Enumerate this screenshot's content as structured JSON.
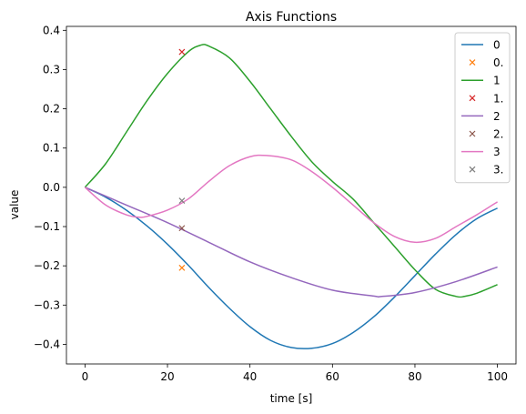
{
  "chart_data": {
    "type": "line",
    "title": "Axis Functions",
    "xlabel": "time [s]",
    "ylabel": "value",
    "xlim": [
      -4.5,
      104.5
    ],
    "ylim": [
      -0.45,
      0.41
    ],
    "xticks": [
      0,
      20,
      40,
      60,
      80,
      100
    ],
    "xtick_labels": [
      "0",
      "20",
      "40",
      "60",
      "80",
      "100"
    ],
    "yticks": [
      -0.4,
      -0.3,
      -0.2,
      -0.1,
      0.0,
      0.1,
      0.2,
      0.3,
      0.4
    ],
    "ytick_labels": [
      "−0.4",
      "−0.3",
      "−0.2",
      "−0.1",
      "0.0",
      "0.1",
      "0.2",
      "0.3",
      "0.4"
    ],
    "grid": false,
    "legend_position": "upper-right",
    "series": [
      {
        "name": "0",
        "color": "#1f77b4",
        "x": [
          0,
          5,
          10,
          15,
          20,
          25,
          30,
          35,
          40,
          45,
          50,
          55,
          60,
          65,
          70,
          75,
          80,
          85,
          90,
          95,
          100
        ],
        "y": [
          0.0,
          -0.025,
          -0.058,
          -0.098,
          -0.145,
          -0.198,
          -0.255,
          -0.308,
          -0.355,
          -0.39,
          -0.408,
          -0.41,
          -0.398,
          -0.37,
          -0.33,
          -0.28,
          -0.225,
          -0.17,
          -0.12,
          -0.08,
          -0.053
        ]
      },
      {
        "name": "0.",
        "color": "#ff7f0e",
        "marker": "x",
        "x": [
          23.5
        ],
        "y": [
          -0.205
        ]
      },
      {
        "name": "1",
        "color": "#2ca02c",
        "x": [
          0,
          5,
          10,
          15,
          20,
          25,
          28,
          30,
          35,
          40,
          45,
          50,
          55,
          60,
          65,
          70,
          75,
          80,
          85,
          90,
          92,
          95,
          100
        ],
        "y": [
          0.0,
          0.06,
          0.14,
          0.22,
          0.29,
          0.345,
          0.362,
          0.36,
          0.33,
          0.27,
          0.2,
          0.13,
          0.065,
          0.015,
          -0.03,
          -0.09,
          -0.15,
          -0.21,
          -0.26,
          -0.278,
          -0.278,
          -0.27,
          -0.248
        ]
      },
      {
        "name": "1.",
        "color": "#d62728",
        "marker": "x",
        "x": [
          23.5
        ],
        "y": [
          0.345
        ]
      },
      {
        "name": "2",
        "color": "#9467bd",
        "x": [
          0,
          10,
          20,
          30,
          40,
          50,
          60,
          70,
          72,
          80,
          90,
          100
        ],
        "y": [
          0.0,
          -0.045,
          -0.09,
          -0.14,
          -0.19,
          -0.23,
          -0.262,
          -0.277,
          -0.278,
          -0.268,
          -0.24,
          -0.203
        ]
      },
      {
        "name": "2.",
        "color": "#8c564b",
        "marker": "x",
        "x": [
          23.5
        ],
        "y": [
          -0.104
        ]
      },
      {
        "name": "3",
        "color": "#e377c2",
        "x": [
          0,
          5,
          10,
          13,
          15,
          20,
          25,
          30,
          35,
          40,
          44,
          50,
          55,
          60,
          65,
          70,
          75,
          80,
          85,
          90,
          95,
          100
        ],
        "y": [
          0.0,
          -0.045,
          -0.07,
          -0.076,
          -0.074,
          -0.058,
          -0.03,
          0.015,
          0.055,
          0.078,
          0.081,
          0.07,
          0.04,
          0.0,
          -0.045,
          -0.09,
          -0.125,
          -0.14,
          -0.13,
          -0.1,
          -0.07,
          -0.037
        ]
      },
      {
        "name": "3.",
        "color": "#7f7f7f",
        "marker": "x",
        "x": [
          23.5
        ],
        "y": [
          -0.034
        ]
      }
    ]
  }
}
